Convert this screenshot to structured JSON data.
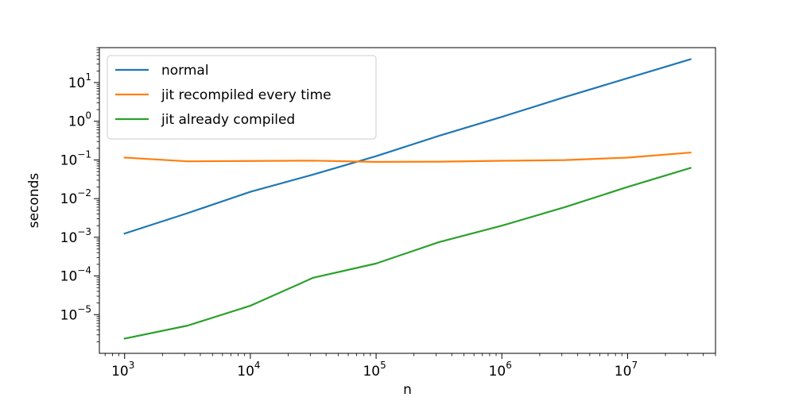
{
  "chart_data": {
    "type": "line",
    "xlabel": "n",
    "ylabel": "seconds",
    "xscale": "log",
    "yscale": "log",
    "xlim": [
      630,
      50000000
    ],
    "ylim": [
      1e-06,
      80
    ],
    "grid": false,
    "legend_position": "top-left",
    "x_ticks": [
      {
        "value": 1000,
        "base": "10",
        "exp": "3"
      },
      {
        "value": 10000,
        "base": "10",
        "exp": "4"
      },
      {
        "value": 100000,
        "base": "10",
        "exp": "5"
      },
      {
        "value": 1000000,
        "base": "10",
        "exp": "6"
      },
      {
        "value": 10000000,
        "base": "10",
        "exp": "7"
      }
    ],
    "y_ticks": [
      {
        "value": 1e-05,
        "base": "10",
        "exp": "−5"
      },
      {
        "value": 0.0001,
        "base": "10",
        "exp": "−4"
      },
      {
        "value": 0.001,
        "base": "10",
        "exp": "−3"
      },
      {
        "value": 0.01,
        "base": "10",
        "exp": "−2"
      },
      {
        "value": 0.1,
        "base": "10",
        "exp": "−1"
      },
      {
        "value": 1,
        "base": "10",
        "exp": "0"
      },
      {
        "value": 10,
        "base": "10",
        "exp": "1"
      }
    ],
    "x": [
      1000,
      3162,
      10000,
      31623,
      100000,
      316228,
      1000000,
      3162278,
      10000000,
      31622777
    ],
    "series": [
      {
        "name": "normal",
        "color": "#1f77b4",
        "values": [
          0.00125,
          0.0042,
          0.015,
          0.042,
          0.125,
          0.42,
          1.3,
          4.2,
          13,
          40
        ]
      },
      {
        "name": "jit recompiled every time",
        "color": "#ff7f0e",
        "values": [
          0.115,
          0.092,
          0.094,
          0.096,
          0.089,
          0.09,
          0.095,
          0.099,
          0.115,
          0.155
        ]
      },
      {
        "name": "jit already compiled",
        "color": "#2ca02c",
        "values": [
          2.4e-06,
          5.2e-06,
          1.7e-05,
          9e-05,
          0.00021,
          0.00075,
          0.002,
          0.006,
          0.02,
          0.062
        ]
      }
    ]
  }
}
